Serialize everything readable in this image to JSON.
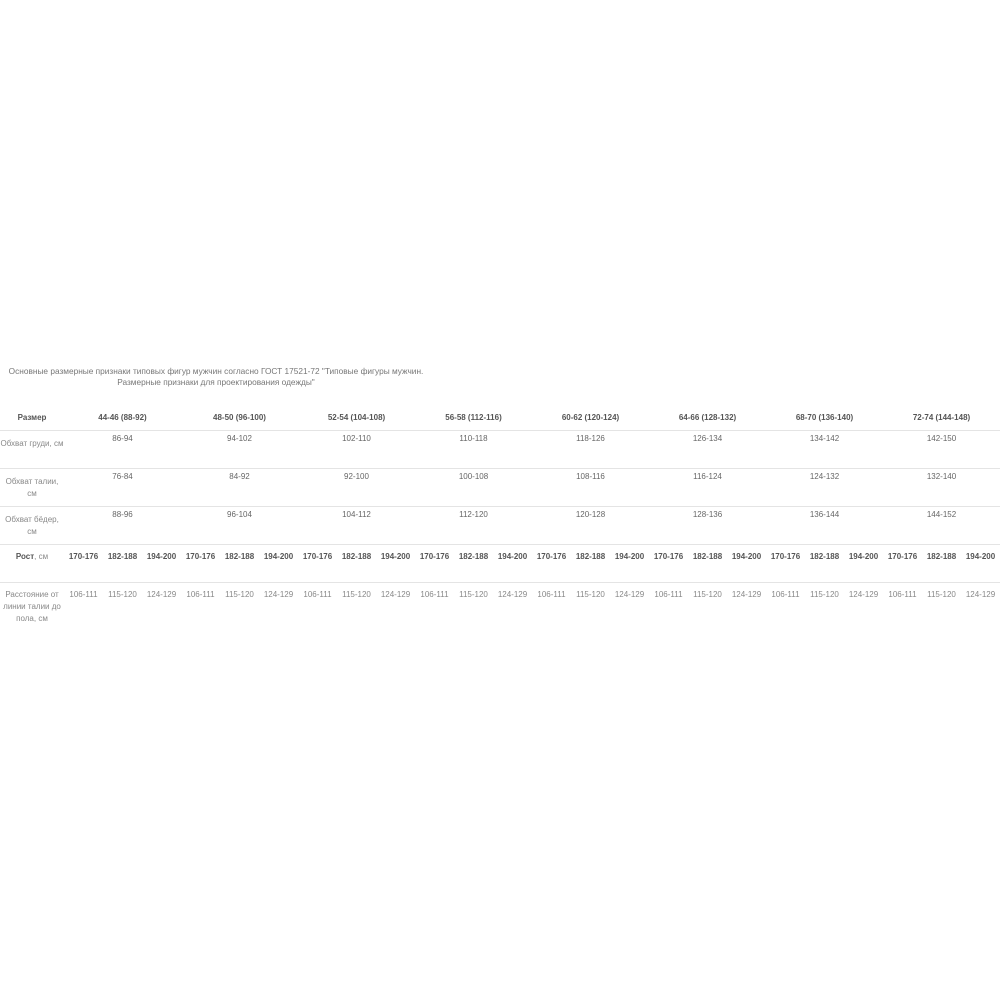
{
  "title": "Основные размерные признаки типовых фигур мужчин согласно ГОСТ 17521-72 \"Типовые фигуры мужчин. Размерные признаки для проектирования одежды\"",
  "header_label": "Размер",
  "sizes": [
    "44-46 (88-92)",
    "48-50 (96-100)",
    "52-54 (104-108)",
    "56-58 (112-116)",
    "60-62 (120-124)",
    "64-66 (128-132)",
    "68-70 (136-140)",
    "72-74 (144-148)"
  ],
  "measurements": [
    {
      "label": "Обхват груди, см",
      "values": [
        "86-94",
        "94-102",
        "102-110",
        "110-118",
        "118-126",
        "126-134",
        "134-142",
        "142-150"
      ]
    },
    {
      "label": "Обхват талии, см",
      "values": [
        "76-84",
        "84-92",
        "92-100",
        "100-108",
        "108-116",
        "116-124",
        "124-132",
        "132-140"
      ]
    },
    {
      "label": "Обхват бёдер, см",
      "values": [
        "88-96",
        "96-104",
        "104-112",
        "112-120",
        "120-128",
        "128-136",
        "136-144",
        "144-152"
      ]
    }
  ],
  "height_row": {
    "label_bold": "Рост",
    "label_unit": ", см",
    "values": [
      "170-176",
      "182-188",
      "194-200"
    ]
  },
  "distance_row": {
    "label": "Расстояние от линии талии до пола, см",
    "values": [
      "106-111",
      "115-120",
      "124-129"
    ]
  }
}
